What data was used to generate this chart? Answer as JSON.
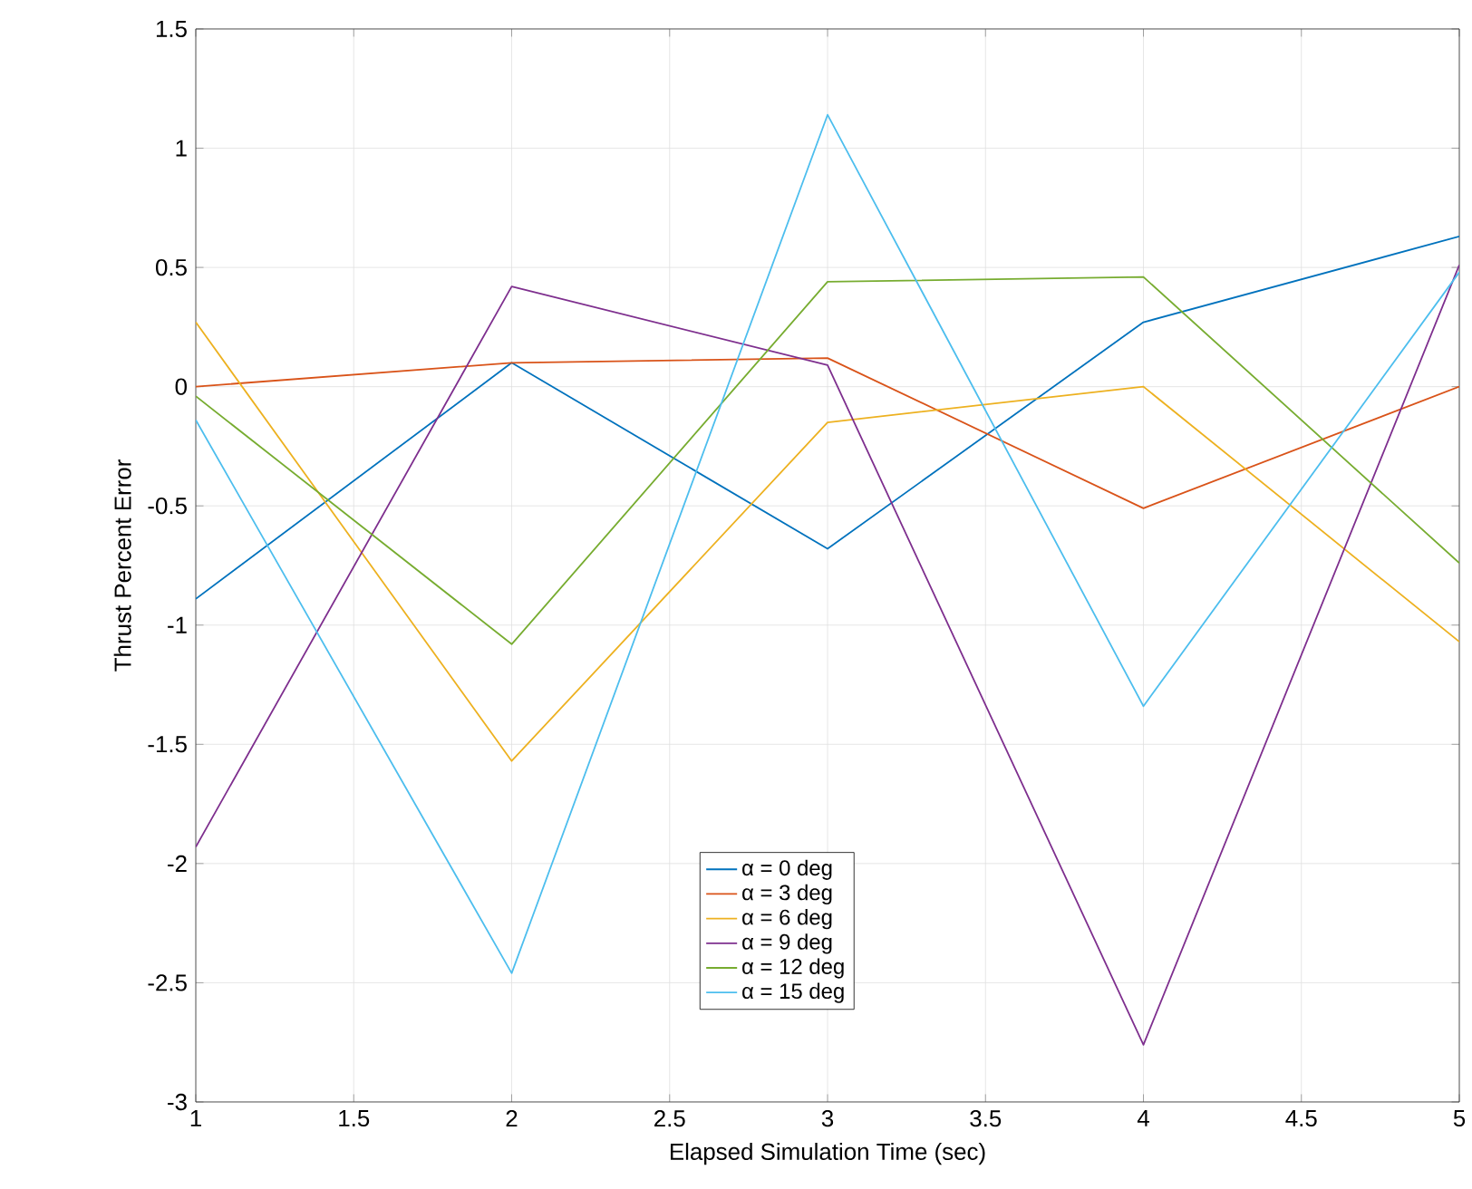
{
  "chart_data": {
    "type": "line",
    "xlabel": "Elapsed Simulation Time (sec)",
    "ylabel": "Thrust Percent Error",
    "x": [
      1,
      2,
      3,
      4,
      5
    ],
    "series": [
      {
        "name": "α = 0 deg",
        "color": "#0072bd",
        "values": [
          -0.89,
          0.1,
          -0.68,
          0.27,
          0.63
        ]
      },
      {
        "name": "α = 3 deg",
        "color": "#d95319",
        "values": [
          0,
          0.1,
          0.12,
          -0.51,
          0
        ]
      },
      {
        "name": "α = 6 deg",
        "color": "#edb120",
        "values": [
          0.27,
          -1.57,
          -0.15,
          0,
          -1.07
        ]
      },
      {
        "name": "α = 9 deg",
        "color": "#7e2f8e",
        "values": [
          -1.93,
          0.42,
          0.09,
          -2.76,
          0.51
        ]
      },
      {
        "name": "α = 12 deg",
        "color": "#77ac30",
        "values": [
          -0.04,
          -1.08,
          0.44,
          0.46,
          -0.74
        ]
      },
      {
        "name": "α = 15 deg",
        "color": "#4dbeee",
        "values": [
          -0.14,
          -2.46,
          1.14,
          -1.34,
          0.48
        ]
      }
    ],
    "xlim": [
      1,
      5
    ],
    "ylim": [
      -3,
      1.5
    ],
    "xticks": [
      1,
      1.5,
      2,
      2.5,
      3,
      3.5,
      4,
      4.5,
      5
    ],
    "yticks": [
      -3,
      -2.5,
      -2,
      -1.5,
      -1,
      -0.5,
      0,
      0.5,
      1,
      1.5
    ],
    "grid": true,
    "legend": "bottom",
    "marker": "none",
    "line_style": "solid"
  }
}
